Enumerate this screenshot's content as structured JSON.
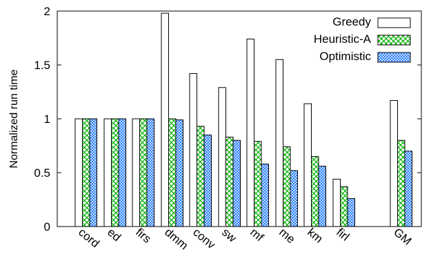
{
  "chart_data": {
    "type": "bar",
    "categories": [
      "cord",
      "ed",
      "firs",
      "dmm",
      "conv",
      "sw",
      "mf",
      "me",
      "km",
      "firl",
      "GM"
    ],
    "series": [
      {
        "name": "Greedy",
        "values": [
          1.0,
          1.0,
          1.0,
          1.98,
          1.42,
          1.29,
          1.74,
          1.55,
          1.14,
          0.44,
          1.17
        ],
        "color": "#ffffff",
        "pattern": "none"
      },
      {
        "name": "Heuristic-A",
        "values": [
          1.0,
          1.0,
          1.0,
          1.0,
          0.93,
          0.83,
          0.79,
          0.74,
          0.65,
          0.37,
          0.8
        ],
        "color": "#00b000",
        "pattern": "crosshatch"
      },
      {
        "name": "Optimistic",
        "values": [
          1.0,
          1.0,
          1.0,
          0.99,
          0.85,
          0.8,
          0.58,
          0.52,
          0.56,
          0.26,
          0.7
        ],
        "color": "#1e78ff",
        "pattern": "dense-crosshatch"
      }
    ],
    "title": "",
    "xlabel": "",
    "ylabel": "Normalized run time",
    "ylim": [
      0,
      2
    ],
    "yticks": [
      "0",
      "0.5",
      "1",
      "1.5",
      "2"
    ],
    "grid": false,
    "legend_position": "top-right"
  }
}
